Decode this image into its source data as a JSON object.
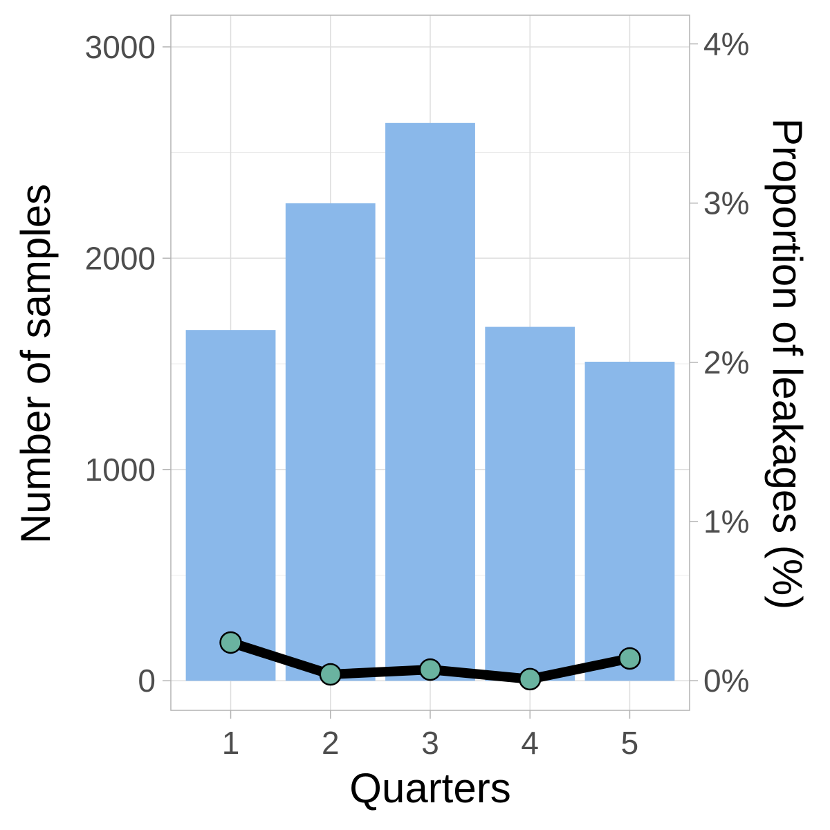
{
  "chart_data": {
    "type": "bar",
    "categories": [
      "1",
      "2",
      "3",
      "4",
      "5"
    ],
    "xlabel": "Quarters",
    "ylabel": "Number of samples",
    "ylabel_right": "Proportion of leakages (%)",
    "ylim": [
      -140,
      3150
    ],
    "yticks": [
      0,
      1000,
      2000,
      3000
    ],
    "ytick_labels": [
      "0",
      "1000",
      "2000",
      "3000"
    ],
    "ylim_right": [
      -0.186,
      4.18
    ],
    "yticks_right": [
      0,
      1,
      2,
      3,
      4
    ],
    "ytick_labels_right": [
      "0%",
      "1%",
      "2%",
      "3%",
      "4%"
    ],
    "grid": true,
    "series": [
      {
        "type": "bar",
        "axis": "left",
        "values": [
          1660,
          2260,
          2640,
          1675,
          1510
        ],
        "color": "#8AB8EA"
      },
      {
        "type": "line",
        "axis": "right",
        "values": [
          0.24,
          0.04,
          0.07,
          0.01,
          0.14
        ],
        "color": "#000000",
        "marker_color": "#6AB3A0"
      }
    ]
  }
}
